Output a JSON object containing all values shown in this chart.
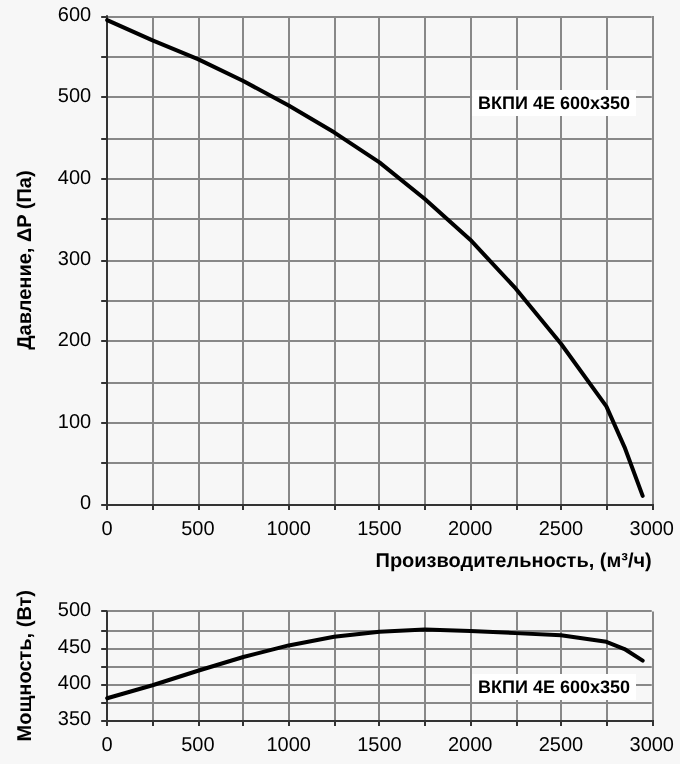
{
  "chart_data": [
    {
      "type": "line",
      "ylabel": "Давление, ΔP (Па)",
      "xlabel": "Производительность, (м³/ч)",
      "annotations": [
        "ВКПИ 4E 600x350"
      ],
      "color": "#000000",
      "marker": "none",
      "grid": true,
      "x": [
        0,
        250,
        500,
        750,
        1000,
        1250,
        1500,
        1750,
        2000,
        2250,
        2500,
        2750,
        2850,
        2950
      ],
      "values": [
        595,
        570,
        547,
        520,
        490,
        457,
        420,
        375,
        325,
        265,
        197,
        120,
        70,
        10
      ],
      "xlim": [
        0,
        3000
      ],
      "xticks": [
        0,
        {
          "value": 250,
          "label": null
        },
        500,
        {
          "value": 750,
          "label": null
        },
        1000,
        {
          "value": 1250,
          "label": null
        },
        1500,
        {
          "value": 1750,
          "label": null
        },
        2000,
        {
          "value": 2250,
          "label": null
        },
        2500,
        {
          "value": 2750,
          "label": null
        },
        3000
      ],
      "ylim": [
        0,
        600
      ],
      "yticks": [
        0,
        {
          "value": 50,
          "label": null
        },
        100,
        {
          "value": 150,
          "label": null
        },
        200,
        {
          "value": 250,
          "label": null
        },
        300,
        {
          "value": 350,
          "label": null
        },
        400,
        {
          "value": 450,
          "label": null
        },
        500,
        {
          "value": 550,
          "label": null
        },
        600
      ]
    },
    {
      "type": "line",
      "ylabel": "Мощность, (Вт)",
      "annotations": [
        "ВКПИ 4E 600x350"
      ],
      "color": "#000000",
      "marker": "none",
      "grid": true,
      "x": [
        0,
        250,
        500,
        750,
        1000,
        1250,
        1500,
        1750,
        2000,
        2250,
        2500,
        2750,
        2850,
        2950
      ],
      "values": [
        380,
        398,
        418,
        437,
        453,
        465,
        472,
        475,
        473,
        470,
        467,
        458,
        448,
        432
      ],
      "xlim": [
        0,
        3000
      ],
      "xticks": [
        0,
        {
          "value": 250,
          "label": null
        },
        500,
        {
          "value": 750,
          "label": null
        },
        1000,
        {
          "value": 1250,
          "label": null
        },
        1500,
        {
          "value": 1750,
          "label": null
        },
        2000,
        {
          "value": 2250,
          "label": null
        },
        2500,
        {
          "value": 2750,
          "label": null
        },
        3000
      ],
      "ylim": [
        350,
        500
      ],
      "yticks": [
        350,
        {
          "value": 375,
          "label": null
        },
        400,
        {
          "value": 425,
          "label": null
        },
        450,
        {
          "value": 475,
          "label": null
        },
        500
      ]
    }
  ]
}
